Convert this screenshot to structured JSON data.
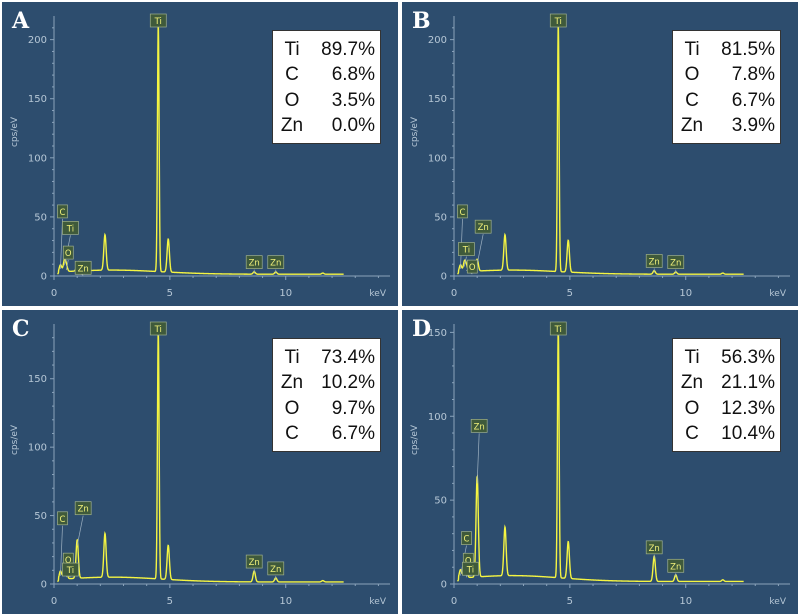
{
  "chart_data": [
    {
      "type": "line",
      "panel": "A",
      "ylabel": "cps/eV",
      "xlabel": "keV",
      "xlim": [
        0,
        14.5
      ],
      "ylim": [
        0,
        220
      ],
      "y_ticks": [
        0,
        50,
        100,
        150,
        200
      ],
      "x_ticks": [
        0,
        5,
        10
      ],
      "peaks": [
        {
          "x": 0.28,
          "y": 6
        },
        {
          "x": 0.45,
          "y": 9
        },
        {
          "x": 0.53,
          "y": 5
        },
        {
          "x": 1.0,
          "y": 4
        },
        {
          "x": 2.2,
          "y": 30
        },
        {
          "x": 4.5,
          "y": 210
        },
        {
          "x": 4.93,
          "y": 28
        },
        {
          "x": 8.64,
          "y": 2
        },
        {
          "x": 9.57,
          "y": 2
        },
        {
          "x": 11.6,
          "y": 1
        }
      ],
      "peak_labels": [
        {
          "label": "Ti",
          "x": 4.5,
          "y": 210
        },
        {
          "label": "C",
          "x": 0.28,
          "y": 6
        },
        {
          "label": "Ti",
          "x": 0.45,
          "y": 9
        },
        {
          "label": "O",
          "x": 0.53,
          "y": 5
        },
        {
          "label": "Zn",
          "x": 1.0,
          "y": 4
        },
        {
          "label": "Zn",
          "x": 8.64,
          "y": 2
        },
        {
          "label": "Zn",
          "x": 9.57,
          "y": 2
        }
      ],
      "composition": [
        {
          "element": "Ti",
          "value": "89.7%"
        },
        {
          "element": "C",
          "value": "6.8%"
        },
        {
          "element": "O",
          "value": "3.5%"
        },
        {
          "element": "Zn",
          "value": "0.0%"
        }
      ]
    },
    {
      "type": "line",
      "panel": "B",
      "ylabel": "cps/eV",
      "xlabel": "keV",
      "xlim": [
        0,
        14.5
      ],
      "ylim": [
        0,
        220
      ],
      "y_ticks": [
        0,
        50,
        100,
        150,
        200
      ],
      "x_ticks": [
        0,
        5,
        10
      ],
      "peaks": [
        {
          "x": 0.28,
          "y": 6
        },
        {
          "x": 0.45,
          "y": 8
        },
        {
          "x": 0.53,
          "y": 5
        },
        {
          "x": 1.0,
          "y": 10
        },
        {
          "x": 2.2,
          "y": 30
        },
        {
          "x": 4.5,
          "y": 210
        },
        {
          "x": 4.93,
          "y": 27
        },
        {
          "x": 8.64,
          "y": 3
        },
        {
          "x": 9.57,
          "y": 2
        },
        {
          "x": 11.6,
          "y": 1
        }
      ],
      "peak_labels": [
        {
          "label": "Ti",
          "x": 4.5,
          "y": 210
        },
        {
          "label": "C",
          "x": 0.28,
          "y": 6
        },
        {
          "label": "Zn",
          "x": 1.0,
          "y": 10
        },
        {
          "label": "Ti",
          "x": 0.45,
          "y": 8
        },
        {
          "label": "O",
          "x": 0.53,
          "y": 5
        },
        {
          "label": "Zn",
          "x": 8.64,
          "y": 3
        },
        {
          "label": "Zn",
          "x": 9.57,
          "y": 2
        }
      ],
      "composition": [
        {
          "element": "Ti",
          "value": "81.5%"
        },
        {
          "element": "O",
          "value": "7.8%"
        },
        {
          "element": "C",
          "value": "6.7%"
        },
        {
          "element": "Zn",
          "value": "3.9%"
        }
      ]
    },
    {
      "type": "line",
      "panel": "C",
      "ylabel": "cps/eV",
      "xlabel": "keV",
      "xlim": [
        0,
        14.5
      ],
      "ylim": [
        0,
        190
      ],
      "y_ticks": [
        0,
        50,
        100,
        150
      ],
      "x_ticks": [
        0,
        5,
        10
      ],
      "peaks": [
        {
          "x": 0.28,
          "y": 6
        },
        {
          "x": 0.45,
          "y": 8
        },
        {
          "x": 0.53,
          "y": 5
        },
        {
          "x": 1.0,
          "y": 28
        },
        {
          "x": 2.2,
          "y": 32
        },
        {
          "x": 4.5,
          "y": 182
        },
        {
          "x": 4.93,
          "y": 25
        },
        {
          "x": 8.64,
          "y": 8
        },
        {
          "x": 9.57,
          "y": 3
        },
        {
          "x": 11.6,
          "y": 1
        }
      ],
      "peak_labels": [
        {
          "label": "Ti",
          "x": 4.5,
          "y": 182
        },
        {
          "label": "C",
          "x": 0.28,
          "y": 6
        },
        {
          "label": "Zn",
          "x": 1.0,
          "y": 28
        },
        {
          "label": "O",
          "x": 0.53,
          "y": 5
        },
        {
          "label": "Ti",
          "x": 0.45,
          "y": 8
        },
        {
          "label": "Zn",
          "x": 8.64,
          "y": 8
        },
        {
          "label": "Zn",
          "x": 9.57,
          "y": 3
        }
      ],
      "composition": [
        {
          "element": "Ti",
          "value": "73.4%"
        },
        {
          "element": "Zn",
          "value": "10.2%"
        },
        {
          "element": "O",
          "value": "9.7%"
        },
        {
          "element": "C",
          "value": "6.7%"
        }
      ]
    },
    {
      "type": "line",
      "panel": "D",
      "ylabel": "cps/eV",
      "xlabel": "keV",
      "xlim": [
        0,
        14.5
      ],
      "ylim": [
        0,
        155
      ],
      "y_ticks": [
        0,
        50,
        100,
        150
      ],
      "x_ticks": [
        0,
        5,
        10
      ],
      "peaks": [
        {
          "x": 0.28,
          "y": 5
        },
        {
          "x": 0.45,
          "y": 7
        },
        {
          "x": 0.53,
          "y": 4
        },
        {
          "x": 1.0,
          "y": 60
        },
        {
          "x": 2.2,
          "y": 29
        },
        {
          "x": 4.5,
          "y": 150
        },
        {
          "x": 4.93,
          "y": 22
        },
        {
          "x": 8.64,
          "y": 15
        },
        {
          "x": 9.57,
          "y": 4
        },
        {
          "x": 11.6,
          "y": 1
        }
      ],
      "peak_labels": [
        {
          "label": "Ti",
          "x": 4.5,
          "y": 150
        },
        {
          "label": "Zn",
          "x": 1.0,
          "y": 60
        },
        {
          "label": "C",
          "x": 0.28,
          "y": 5
        },
        {
          "label": "O",
          "x": 0.53,
          "y": 4
        },
        {
          "label": "Ti",
          "x": 0.45,
          "y": 7
        },
        {
          "label": "Zn",
          "x": 8.64,
          "y": 15
        },
        {
          "label": "Zn",
          "x": 9.57,
          "y": 4
        }
      ],
      "composition": [
        {
          "element": "Ti",
          "value": "56.3%"
        },
        {
          "element": "Zn",
          "value": "21.1%"
        },
        {
          "element": "O",
          "value": "12.3%"
        },
        {
          "element": "C",
          "value": "10.4%"
        }
      ]
    }
  ],
  "colors": {
    "background": "#2d4d6e",
    "spectrum": "#f5f542",
    "axis": "#8aa3bb",
    "tick_text": "#b6c7d6",
    "label_box": "#3f5a3b"
  }
}
